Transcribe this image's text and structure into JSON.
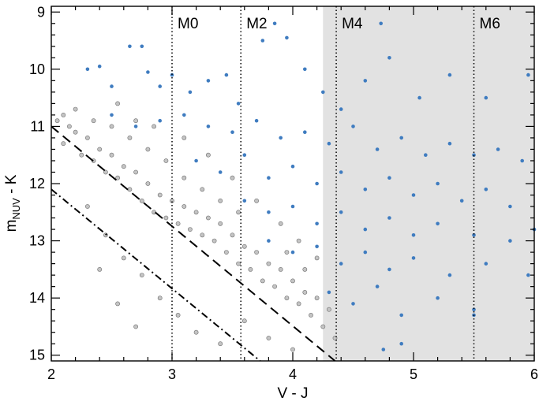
{
  "chart_data": {
    "type": "scatter",
    "title": "",
    "xlabel": "V - J",
    "ylabel_main": "m",
    "ylabel_sub": "NUV",
    "ylabel_tail": " - K",
    "xlim": [
      2,
      6
    ],
    "ylim": [
      15.1,
      8.9
    ],
    "y_inverted": true,
    "x_ticks": [
      2,
      3,
      4,
      5,
      6
    ],
    "y_ticks": [
      9,
      10,
      11,
      12,
      13,
      14,
      15
    ],
    "x_minor_step": 0.2,
    "y_minor_step": 0.2,
    "grid": false,
    "shaded_region": {
      "x_from": 4.25,
      "x_to": 6,
      "color": "#e2e2e2"
    },
    "spectral_types": [
      {
        "label": "M0",
        "x": 3.0
      },
      {
        "label": "M2",
        "x": 3.57
      },
      {
        "label": "M4",
        "x": 4.36
      },
      {
        "label": "M6",
        "x": 5.5
      }
    ],
    "reference_lines": [
      {
        "style": "dashed",
        "points": [
          [
            2.0,
            11.0
          ],
          [
            4.35,
            15.1
          ]
        ]
      },
      {
        "style": "dash-dot",
        "points": [
          [
            2.0,
            12.1
          ],
          [
            3.73,
            15.1
          ]
        ]
      }
    ],
    "colors": {
      "active": "#3f7cc0",
      "inactive_fill": "#c4c4c4",
      "inactive_edge": "#6e6e6e",
      "shade": "#e2e2e2"
    },
    "series": [
      {
        "role": "inactive",
        "points": [
          [
            2.05,
            10.9
          ],
          [
            2.1,
            10.8
          ],
          [
            2.15,
            11.0
          ],
          [
            2.1,
            11.3
          ],
          [
            2.2,
            11.1
          ],
          [
            2.25,
            11.5
          ],
          [
            2.3,
            11.2
          ],
          [
            2.35,
            11.6
          ],
          [
            2.4,
            11.4
          ],
          [
            2.45,
            11.8
          ],
          [
            2.5,
            11.5
          ],
          [
            2.55,
            11.9
          ],
          [
            2.6,
            11.7
          ],
          [
            2.65,
            12.1
          ],
          [
            2.7,
            11.8
          ],
          [
            2.75,
            12.3
          ],
          [
            2.8,
            12.0
          ],
          [
            2.85,
            12.5
          ],
          [
            2.9,
            12.2
          ],
          [
            2.95,
            12.6
          ],
          [
            3.0,
            12.3
          ],
          [
            3.05,
            12.7
          ],
          [
            3.1,
            12.4
          ],
          [
            3.15,
            12.8
          ],
          [
            3.2,
            12.5
          ],
          [
            3.25,
            12.9
          ],
          [
            3.3,
            12.6
          ],
          [
            3.35,
            13.0
          ],
          [
            3.4,
            12.7
          ],
          [
            3.45,
            13.2
          ],
          [
            3.5,
            12.9
          ],
          [
            3.55,
            13.4
          ],
          [
            3.6,
            13.1
          ],
          [
            3.65,
            13.5
          ],
          [
            3.7,
            13.2
          ],
          [
            3.75,
            13.7
          ],
          [
            3.8,
            13.4
          ],
          [
            3.85,
            13.8
          ],
          [
            3.9,
            13.5
          ],
          [
            3.95,
            14.0
          ],
          [
            4.0,
            13.7
          ],
          [
            4.05,
            14.1
          ],
          [
            4.1,
            13.9
          ],
          [
            4.15,
            14.3
          ],
          [
            4.2,
            14.0
          ],
          [
            4.25,
            14.5
          ],
          [
            4.3,
            14.2
          ],
          [
            4.35,
            14.7
          ],
          [
            2.3,
            12.4
          ],
          [
            2.45,
            12.9
          ],
          [
            2.6,
            13.3
          ],
          [
            2.75,
            13.6
          ],
          [
            2.9,
            14.0
          ],
          [
            3.05,
            14.3
          ],
          [
            3.2,
            14.6
          ],
          [
            3.4,
            14.8
          ],
          [
            2.5,
            11.0
          ],
          [
            2.65,
            11.2
          ],
          [
            2.8,
            11.4
          ],
          [
            2.95,
            11.6
          ],
          [
            3.1,
            11.9
          ],
          [
            3.25,
            12.1
          ],
          [
            3.4,
            12.3
          ],
          [
            3.55,
            12.5
          ],
          [
            2.2,
            10.7
          ],
          [
            2.35,
            10.9
          ],
          [
            2.55,
            10.6
          ],
          [
            2.7,
            10.9
          ],
          [
            2.85,
            11.0
          ],
          [
            3.1,
            11.2
          ],
          [
            3.3,
            11.5
          ],
          [
            3.5,
            11.9
          ],
          [
            3.7,
            12.3
          ],
          [
            3.9,
            12.7
          ],
          [
            4.05,
            13.0
          ],
          [
            4.2,
            13.3
          ],
          [
            3.6,
            14.4
          ],
          [
            3.8,
            14.7
          ],
          [
            4.0,
            14.9
          ],
          [
            2.4,
            13.5
          ],
          [
            2.55,
            14.1
          ],
          [
            2.7,
            14.5
          ],
          [
            3.95,
            13.2
          ],
          [
            4.1,
            13.5
          ]
        ]
      },
      {
        "role": "active",
        "points": [
          [
            2.3,
            10.0
          ],
          [
            2.4,
            9.95
          ],
          [
            2.5,
            10.3
          ],
          [
            2.65,
            9.6
          ],
          [
            2.75,
            9.6
          ],
          [
            2.8,
            10.05
          ],
          [
            2.9,
            10.3
          ],
          [
            3.0,
            10.1
          ],
          [
            3.15,
            10.4
          ],
          [
            3.3,
            10.2
          ],
          [
            3.45,
            10.1
          ],
          [
            3.55,
            10.6
          ],
          [
            3.75,
            9.5
          ],
          [
            3.85,
            9.2
          ],
          [
            3.95,
            9.45
          ],
          [
            4.1,
            10.0
          ],
          [
            4.25,
            10.4
          ],
          [
            4.4,
            10.7
          ],
          [
            4.6,
            10.2
          ],
          [
            4.73,
            9.2
          ],
          [
            4.8,
            9.8
          ],
          [
            5.05,
            10.5
          ],
          [
            5.3,
            10.1
          ],
          [
            5.6,
            10.5
          ],
          [
            5.95,
            10.1
          ],
          [
            2.5,
            10.8
          ],
          [
            2.7,
            11.0
          ],
          [
            2.9,
            10.9
          ],
          [
            3.1,
            10.8
          ],
          [
            3.3,
            11.0
          ],
          [
            3.5,
            11.1
          ],
          [
            3.7,
            10.9
          ],
          [
            3.9,
            11.2
          ],
          [
            4.1,
            11.1
          ],
          [
            4.3,
            11.3
          ],
          [
            4.5,
            11.0
          ],
          [
            4.7,
            11.4
          ],
          [
            4.9,
            11.2
          ],
          [
            5.1,
            11.5
          ],
          [
            5.3,
            11.3
          ],
          [
            5.5,
            11.5
          ],
          [
            5.7,
            11.4
          ],
          [
            5.9,
            11.6
          ],
          [
            3.2,
            11.6
          ],
          [
            3.4,
            11.8
          ],
          [
            3.6,
            11.5
          ],
          [
            3.8,
            11.9
          ],
          [
            4.0,
            11.7
          ],
          [
            4.2,
            12.0
          ],
          [
            4.4,
            11.8
          ],
          [
            4.6,
            12.1
          ],
          [
            4.8,
            11.9
          ],
          [
            5.0,
            12.2
          ],
          [
            5.2,
            12.0
          ],
          [
            5.4,
            12.3
          ],
          [
            5.6,
            12.1
          ],
          [
            5.8,
            12.4
          ],
          [
            3.6,
            12.3
          ],
          [
            3.8,
            12.5
          ],
          [
            4.0,
            12.4
          ],
          [
            4.2,
            12.7
          ],
          [
            4.4,
            12.5
          ],
          [
            4.6,
            12.8
          ],
          [
            4.8,
            12.6
          ],
          [
            5.0,
            12.9
          ],
          [
            5.2,
            12.7
          ],
          [
            5.5,
            12.9
          ],
          [
            5.8,
            13.0
          ],
          [
            6.0,
            12.8
          ],
          [
            3.8,
            13.0
          ],
          [
            4.0,
            13.2
          ],
          [
            4.2,
            13.1
          ],
          [
            4.4,
            13.4
          ],
          [
            4.6,
            13.2
          ],
          [
            4.8,
            13.5
          ],
          [
            5.0,
            13.3
          ],
          [
            5.3,
            13.6
          ],
          [
            5.6,
            13.4
          ],
          [
            4.3,
            13.9
          ],
          [
            4.5,
            14.1
          ],
          [
            4.7,
            13.8
          ],
          [
            4.9,
            14.3
          ],
          [
            5.2,
            14.0
          ],
          [
            5.5,
            14.2
          ],
          [
            5.5,
            14.3
          ],
          [
            4.9,
            14.8
          ],
          [
            4.75,
            14.9
          ],
          [
            5.95,
            13.6
          ]
        ]
      }
    ]
  }
}
